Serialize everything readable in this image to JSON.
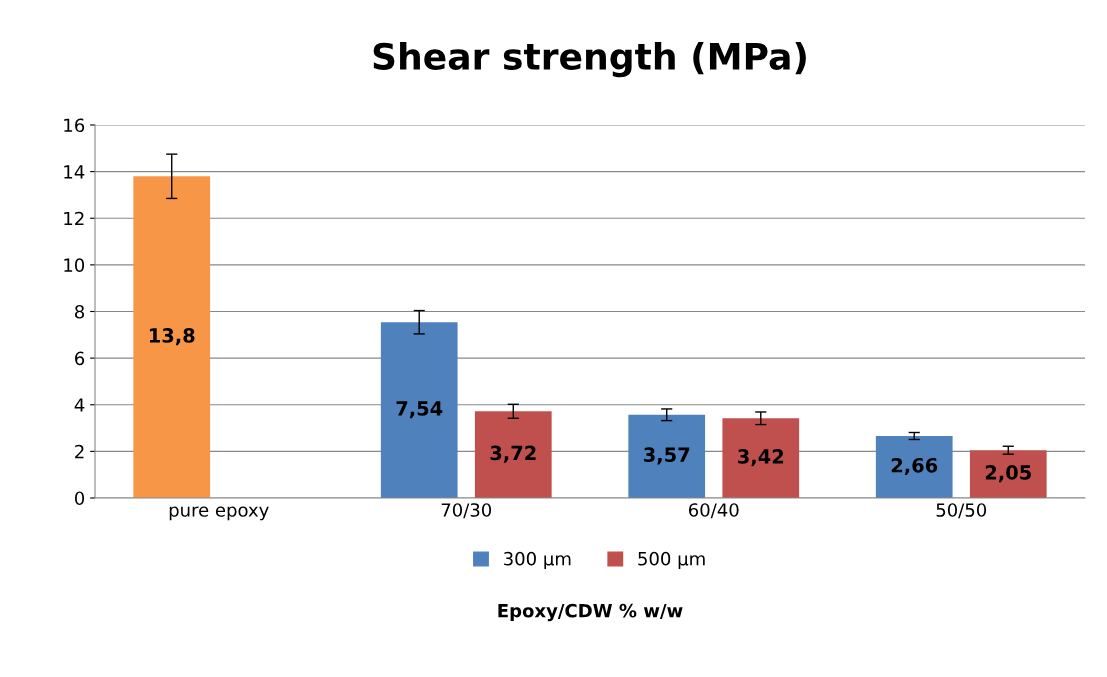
{
  "chart_data": {
    "type": "bar",
    "title": "Shear strength (MPa)",
    "xlabel": "Epoxy/CDW % w/w",
    "categories": [
      "pure epoxy",
      "70/30",
      "60/40",
      "50/50"
    ],
    "series": [
      {
        "name": "300 µm",
        "color": "#4f81bd",
        "colors": [
          "#f79646",
          "#4f81bd",
          "#4f81bd",
          "#4f81bd"
        ],
        "values": [
          13.8,
          7.54,
          3.57,
          2.66
        ],
        "errors": [
          0.95,
          0.5,
          0.25,
          0.15
        ],
        "value_labels": [
          "13,8",
          "7,54",
          "3,57",
          "2,66"
        ]
      },
      {
        "name": "500 µm",
        "color": "#c0504d",
        "values": [
          null,
          3.72,
          3.42,
          2.05
        ],
        "errors": [
          null,
          0.3,
          0.27,
          0.17
        ],
        "value_labels": [
          null,
          "3,72",
          "3,42",
          "2,05"
        ]
      }
    ],
    "ylim": [
      0,
      16
    ],
    "yticks": [
      0,
      2,
      4,
      6,
      8,
      10,
      12,
      14,
      16
    ],
    "grid": "y",
    "legend": "bottom"
  }
}
